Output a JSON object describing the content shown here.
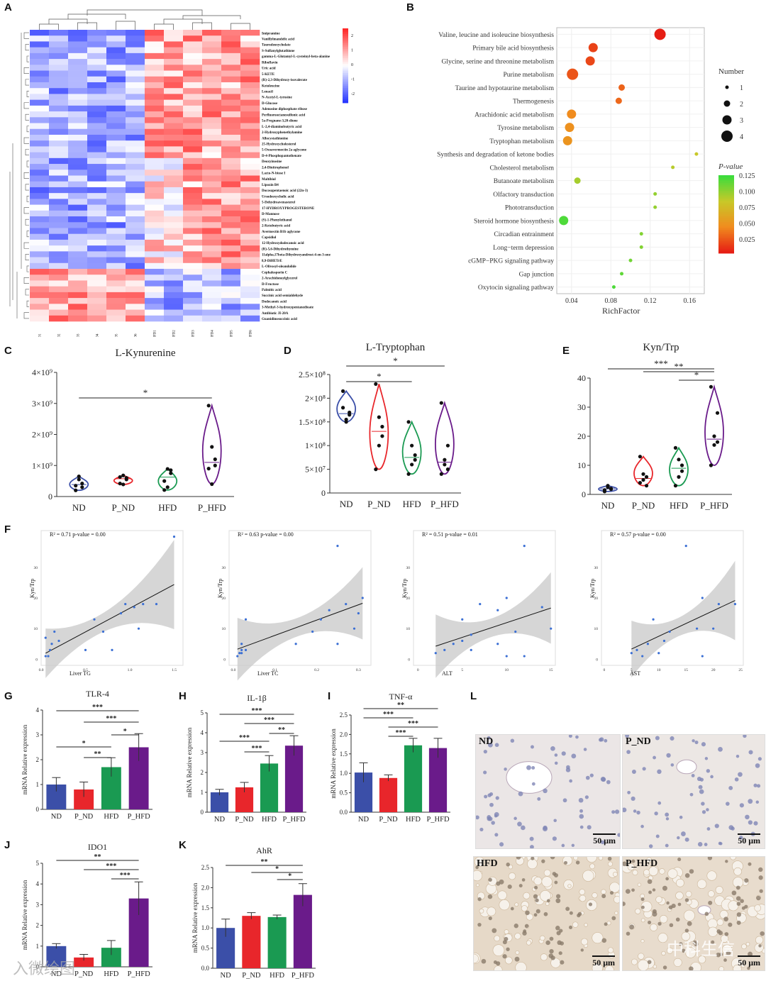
{
  "panel_labels": {
    "A": "A",
    "B": "B",
    "C": "C",
    "D": "D",
    "E": "E",
    "F": "F",
    "G": "G",
    "H": "H",
    "I": "I",
    "J": "J",
    "K": "K",
    "L": "L"
  },
  "colors": {
    "ND": "#3b4fa8",
    "P_ND": "#e8262b",
    "HFD": "#1a9a52",
    "P_HFD": "#6a1b8a",
    "heat_hi": "#e3262b",
    "heat_lo": "#2b3fcf"
  },
  "chart_data": [
    {
      "id": "A",
      "type": "heatmap",
      "columns": [
        "HFD1",
        "HFD2",
        "HFD3",
        "HFD4",
        "HFD5",
        "HFD6",
        "P_HFD1",
        "P_HFD2",
        "P_HFD3",
        "P_HFD4",
        "P_HFD5",
        "P_HFD6"
      ],
      "rows": [
        "Imipramine",
        "Vanillylmandelic acid",
        "Taurodeoxycholate",
        "S-Sulfanylglutathione",
        "gamma-L-Glutamyl-L-cysteinyl-beta-alanine",
        "Riboflavin",
        "Uric acid",
        "5-KETE",
        "(R)-2,3-Dihydroxy-isovalerate",
        "Ketoleucine",
        "Lenacil",
        "N-Acetyl-L-tyrosine",
        "D-Glucose",
        "Adenosine diphosphate ribose",
        "Perfluorooctanesulfonic acid",
        "5a-Pregnane-3,20-dione",
        "L-2,4-diaminobutyric acid",
        "2-Hydroxyphenethylamine",
        "Allocystathionine",
        "25-Hydroxycholesterol",
        "5-Oxoavermectin 2a aglycone",
        "D-4-Phosphopantothenate",
        "Deoxyinosine",
        "2,4-Dinitrophenol",
        "Lacto-N-biose I",
        "Maltibiol",
        "Lipoxin B4",
        "Docosapentaenoic acid (22n-3)",
        "Ursodeoxycholic acid",
        "5-Dehydroavenasterol",
        "17-HYDROXYPROGESTERONE",
        "D-Mannose",
        "(S)-1-Phenylethanol",
        "2-Ketobutyric acid",
        "Avermectin B1b aglycone",
        "Capsidiol",
        "12-Hydroxydodecanoic acid",
        "(R)-5,6-Dihydrothymine",
        "11alpha,17beta-Dihydroxyandrost-4-en-3-one",
        "8,9-DiHETrE",
        "L-Olivosyl-oleandolide",
        "Cephalosporin C",
        "2-Arachidonoylglycerol",
        "D-Fructose",
        "Palmitic acid",
        "Succinic acid semialdehyde",
        "Dodecanoic acid",
        "3-Methyl-3-hydroxypentanedioate",
        "Antibiotic JI-20A",
        "Guanidinosuccinic acid"
      ],
      "colorbar_ticks": [
        "2",
        "1",
        "0",
        "-1",
        "-2"
      ],
      "values_note": "z-score rows, red high / blue low"
    },
    {
      "id": "B",
      "type": "scatter",
      "title": "",
      "xlabel": "RichFactor",
      "xticks": [
        "0.04",
        "0.08",
        "0.12",
        "0.16"
      ],
      "xlim": [
        0.025,
        0.175
      ],
      "pathways": [
        {
          "name": "Valine, leucine and isoleucine biosynthesis",
          "rich": 0.13,
          "number": 4,
          "p": 0.005
        },
        {
          "name": "Primary bile acid biosynthesis",
          "rich": 0.062,
          "number": 3,
          "p": 0.018
        },
        {
          "name": "Glycine, serine and threonine metabolism",
          "rich": 0.059,
          "number": 3,
          "p": 0.02
        },
        {
          "name": "Purine metabolism",
          "rich": 0.041,
          "number": 4,
          "p": 0.025
        },
        {
          "name": "Taurine and hypotaurine metabolism",
          "rich": 0.091,
          "number": 2,
          "p": 0.03
        },
        {
          "name": "Thermogenesis",
          "rich": 0.088,
          "number": 2,
          "p": 0.032
        },
        {
          "name": "Arachidonic acid metabolism",
          "rich": 0.04,
          "number": 3,
          "p": 0.045
        },
        {
          "name": "Tyrosine metabolism",
          "rich": 0.038,
          "number": 3,
          "p": 0.048
        },
        {
          "name": "Tryptophan metabolism",
          "rich": 0.036,
          "number": 3,
          "p": 0.05
        },
        {
          "name": "Synthesis and degradation of ketone bodies",
          "rich": 0.167,
          "number": 1,
          "p": 0.085
        },
        {
          "name": "Cholesterol metabolism",
          "rich": 0.143,
          "number": 1,
          "p": 0.09
        },
        {
          "name": "Butanoate metabolism",
          "rich": 0.046,
          "number": 2,
          "p": 0.095
        },
        {
          "name": "Olfactory transduction",
          "rich": 0.125,
          "number": 1,
          "p": 0.1
        },
        {
          "name": "Phototransduction",
          "rich": 0.125,
          "number": 1,
          "p": 0.1
        },
        {
          "name": "Steroid hormone biosynthesis",
          "rich": 0.032,
          "number": 3,
          "p": 0.12
        },
        {
          "name": "Circadian entrainment",
          "rich": 0.111,
          "number": 1,
          "p": 0.105
        },
        {
          "name": "Long−term depression",
          "rich": 0.111,
          "number": 1,
          "p": 0.105
        },
        {
          "name": "cGMP−PKG signaling pathway",
          "rich": 0.1,
          "number": 1,
          "p": 0.11
        },
        {
          "name": "Gap junction",
          "rich": 0.091,
          "number": 1,
          "p": 0.115
        },
        {
          "name": "Oxytocin signaling pathway",
          "rich": 0.083,
          "number": 1,
          "p": 0.12
        }
      ],
      "legend_number_title": "Number",
      "legend_number_values": [
        "1",
        "2",
        "3",
        "4"
      ],
      "legend_p_title": "P-value",
      "legend_p_ticks": [
        "0.125",
        "0.100",
        "0.075",
        "0.050",
        "0.025"
      ]
    },
    {
      "id": "C",
      "type": "violin",
      "title": "L-Kynurenine",
      "categories": [
        "ND",
        "P_ND",
        "HFD",
        "P_HFD"
      ],
      "yticks": [
        "0",
        "1×10⁹",
        "2×10⁹",
        "3×10⁹",
        "4×10⁹"
      ],
      "ylim": [
        0,
        4000000000.0
      ],
      "points": [
        [
          350000000.0,
          650000000.0,
          420000000.0,
          200000000.0,
          550000000.0,
          300000000.0
        ],
        [
          420000000.0,
          680000000.0,
          550000000.0,
          630000000.0,
          390000000.0,
          600000000.0
        ],
        [
          210000000.0,
          890000000.0,
          750000000.0,
          500000000.0,
          300000000.0,
          850000000.0
        ],
        [
          2930000000.0,
          1600000000.0,
          1200000000.0,
          900000000.0,
          400000000.0,
          1000000000.0
        ]
      ],
      "significance": [
        {
          "from": "ND",
          "to": "P_HFD",
          "label": "*"
        }
      ]
    },
    {
      "id": "D",
      "type": "violin",
      "title": "L-Tryptophan",
      "categories": [
        "ND",
        "P_ND",
        "HFD",
        "P_HFD"
      ],
      "yticks": [
        "0",
        "5×10⁷",
        "1×10⁸",
        "1.5×10⁸",
        "2×10⁸",
        "2.5×10⁸"
      ],
      "ylim": [
        0,
        250000000.0
      ],
      "points": [
        [
          215000000.0,
          150000000.0,
          165000000.0,
          180000000.0,
          155000000.0,
          170000000.0
        ],
        [
          230000000.0,
          160000000.0,
          120000000.0,
          50000000.0,
          100000000.0,
          140000000.0
        ],
        [
          150000000.0,
          100000000.0,
          70000000.0,
          40000000.0,
          60000000.0,
          80000000.0
        ],
        [
          190000000.0,
          60000000.0,
          50000000.0,
          40000000.0,
          70000000.0,
          100000000.0
        ]
      ],
      "significance": [
        {
          "from": "ND",
          "to": "HFD",
          "label": "*"
        },
        {
          "from": "ND",
          "to": "P_HFD",
          "label": "*"
        }
      ]
    },
    {
      "id": "E",
      "type": "violin",
      "title": "Kyn/Trp",
      "categories": [
        "ND",
        "P_ND",
        "HFD",
        "P_HFD"
      ],
      "yticks": [
        "0",
        "10",
        "20",
        "30",
        "40"
      ],
      "ylim": [
        0,
        40
      ],
      "points": [
        [
          1.5,
          3,
          2,
          1,
          2.5,
          1.8
        ],
        [
          13,
          5,
          3,
          4,
          7,
          6
        ],
        [
          16,
          12,
          8,
          3,
          6,
          10
        ],
        [
          37,
          20,
          18,
          10,
          17,
          28
        ]
      ],
      "significance": [
        {
          "from": "ND",
          "to": "P_HFD",
          "label": "***"
        },
        {
          "from": "P_ND",
          "to": "P_HFD",
          "label": "**"
        },
        {
          "from": "HFD",
          "to": "P_HFD",
          "label": "*"
        }
      ]
    },
    {
      "id": "F1",
      "type": "scatter",
      "annotation": "R² = 0.71  p-value = 0.00",
      "xlabel": "Liver TG",
      "ylabel": "Kyn/Trp",
      "xticks": [
        "0.0",
        "0.5",
        "1.0",
        "1.5"
      ],
      "yticks": [
        "0",
        "10",
        "20",
        "30"
      ],
      "xlim": [
        0,
        1.6
      ],
      "ylim": [
        -2,
        42
      ],
      "points": [
        [
          1.5,
          40
        ],
        [
          0.05,
          7
        ],
        [
          0.1,
          3
        ],
        [
          0.12,
          5
        ],
        [
          0.08,
          1
        ],
        [
          0.15,
          9
        ],
        [
          0.2,
          6
        ],
        [
          0.6,
          13
        ],
        [
          0.9,
          15
        ],
        [
          0.95,
          18
        ],
        [
          1.05,
          17
        ],
        [
          1.15,
          18
        ],
        [
          0.7,
          9
        ],
        [
          0.5,
          3
        ],
        [
          0.8,
          3
        ],
        [
          1.1,
          10
        ],
        [
          1.3,
          18
        ],
        [
          0.05,
          1
        ]
      ]
    },
    {
      "id": "F2",
      "type": "scatter",
      "annotation": "R² = 0.63  p-value = 0.00",
      "xlabel": "Liver TC",
      "ylabel": "Kyn/Trp",
      "xticks": [
        "0.0",
        "0.1",
        "0.2",
        "0.3"
      ],
      "yticks": [
        "0",
        "10",
        "20",
        "30"
      ],
      "xlim": [
        -0.01,
        0.33
      ],
      "ylim": [
        -2,
        42
      ],
      "points": [
        [
          0.25,
          37
        ],
        [
          0.31,
          20
        ],
        [
          0.27,
          18
        ],
        [
          0.23,
          16
        ],
        [
          0.21,
          13
        ],
        [
          0.29,
          10
        ],
        [
          0.19,
          9
        ],
        [
          0.15,
          5
        ],
        [
          0.03,
          13
        ],
        [
          0.02,
          3
        ],
        [
          0.015,
          2
        ],
        [
          0.02,
          5
        ],
        [
          0.03,
          3
        ],
        [
          0.01,
          1
        ],
        [
          0.02,
          2
        ],
        [
          0.25,
          5
        ],
        [
          0.3,
          15
        ]
      ]
    },
    {
      "id": "F3",
      "type": "scatter",
      "annotation": "R² = 0.51  p-value = 0.01",
      "xlabel": "ALT",
      "ylabel": "Kyn/Trp",
      "xticks": [
        "0",
        "5",
        "10",
        "15"
      ],
      "yticks": [
        "0",
        "10",
        "20",
        "30"
      ],
      "xlim": [
        -0.5,
        15.5
      ],
      "ylim": [
        -2,
        42
      ],
      "points": [
        [
          12,
          37
        ],
        [
          10,
          20
        ],
        [
          7,
          18
        ],
        [
          9,
          16
        ],
        [
          5,
          13
        ],
        [
          15,
          10
        ],
        [
          11,
          9
        ],
        [
          4,
          5
        ],
        [
          3,
          3
        ],
        [
          6,
          3
        ],
        [
          5,
          6
        ],
        [
          2,
          2
        ],
        [
          10,
          1
        ],
        [
          12,
          1
        ],
        [
          9,
          5
        ],
        [
          14,
          17
        ],
        [
          6,
          8
        ]
      ]
    },
    {
      "id": "F4",
      "type": "scatter",
      "annotation": "R² = 0.57  p-value = 0.00",
      "xlabel": "AST",
      "ylabel": "Kyn/Trp",
      "xticks": [
        "0",
        "5",
        "10",
        "15",
        "20",
        "25"
      ],
      "yticks": [
        "0",
        "10",
        "20",
        "30"
      ],
      "xlim": [
        -0.5,
        25.5
      ],
      "ylim": [
        -2,
        42
      ],
      "points": [
        [
          15,
          37
        ],
        [
          18,
          20
        ],
        [
          21,
          18
        ],
        [
          24,
          18
        ],
        [
          9,
          13
        ],
        [
          17,
          10
        ],
        [
          12,
          9
        ],
        [
          8,
          5
        ],
        [
          6,
          3
        ],
        [
          5,
          2
        ],
        [
          10,
          2
        ],
        [
          7,
          1
        ],
        [
          18,
          1
        ],
        [
          20,
          10
        ],
        [
          11,
          6
        ]
      ]
    },
    {
      "id": "G",
      "type": "bar",
      "title": "TLR-4",
      "ylabel": "mRNA Relative expression",
      "categories": [
        "ND",
        "P_ND",
        "HFD",
        "P_HFD"
      ],
      "values": [
        1.0,
        0.8,
        1.7,
        2.5
      ],
      "errors": [
        0.28,
        0.3,
        0.38,
        0.55
      ],
      "yticks": [
        "0",
        "1",
        "2",
        "3",
        "4"
      ],
      "ylim": [
        0,
        4
      ],
      "significance": [
        {
          "from": "ND",
          "to": "P_HFD",
          "label": "***"
        },
        {
          "from": "P_ND",
          "to": "P_HFD",
          "label": "***"
        },
        {
          "from": "HFD",
          "to": "P_HFD",
          "label": "*"
        },
        {
          "from": "ND",
          "to": "HFD",
          "label": "*"
        },
        {
          "from": "P_ND",
          "to": "HFD",
          "label": "**"
        }
      ]
    },
    {
      "id": "H",
      "type": "bar",
      "title": "IL-1β",
      "ylabel": "mRNA Relative expression",
      "categories": [
        "ND",
        "P_ND",
        "HFD",
        "P_HFD"
      ],
      "values": [
        1.0,
        1.25,
        2.45,
        3.35
      ],
      "errors": [
        0.15,
        0.25,
        0.4,
        0.5
      ],
      "yticks": [
        "0",
        "1",
        "2",
        "3",
        "4",
        "5"
      ],
      "ylim": [
        0,
        5
      ],
      "significance": [
        {
          "from": "ND",
          "to": "P_HFD",
          "label": "***"
        },
        {
          "from": "P_ND",
          "to": "P_HFD",
          "label": "***"
        },
        {
          "from": "HFD",
          "to": "P_HFD",
          "label": "**"
        },
        {
          "from": "ND",
          "to": "HFD",
          "label": "***"
        },
        {
          "from": "P_ND",
          "to": "HFD",
          "label": "***"
        }
      ]
    },
    {
      "id": "I",
      "type": "bar",
      "title": "TNF-α",
      "ylabel": "mRNA Relative expression",
      "categories": [
        "ND",
        "P_ND",
        "HFD",
        "P_HFD"
      ],
      "values": [
        1.02,
        0.88,
        1.72,
        1.65
      ],
      "errors": [
        0.25,
        0.08,
        0.18,
        0.25
      ],
      "yticks": [
        "0.0",
        "0.5",
        "1.0",
        "1.5",
        "2.0",
        "2.5"
      ],
      "ylim": [
        0,
        2.5
      ],
      "significance": [
        {
          "from": "ND",
          "to": "P_HFD",
          "label": "**"
        },
        {
          "from": "ND",
          "to": "HFD",
          "label": "***"
        },
        {
          "from": "P_ND",
          "to": "P_HFD",
          "label": "***"
        },
        {
          "from": "P_ND",
          "to": "HFD",
          "label": "***"
        }
      ]
    },
    {
      "id": "J",
      "type": "bar",
      "title": "IDO1",
      "ylabel": "mRNA Relative expression",
      "categories": [
        "ND",
        "P_ND",
        "HFD",
        "P_HFD"
      ],
      "values": [
        1.0,
        0.45,
        0.92,
        3.3
      ],
      "errors": [
        0.12,
        0.15,
        0.35,
        0.8
      ],
      "yticks": [
        "0",
        "1",
        "2",
        "3",
        "4",
        "5"
      ],
      "ylim": [
        0,
        5
      ],
      "significance": [
        {
          "from": "ND",
          "to": "P_HFD",
          "label": "**"
        },
        {
          "from": "P_ND",
          "to": "P_HFD",
          "label": "***"
        },
        {
          "from": "HFD",
          "to": "P_HFD",
          "label": "***"
        }
      ]
    },
    {
      "id": "K",
      "type": "bar",
      "title": "AhR",
      "ylabel": "mRNA Relative expression",
      "categories": [
        "ND",
        "P_ND",
        "HFD",
        "P_HFD"
      ],
      "values": [
        1.0,
        1.3,
        1.27,
        1.82
      ],
      "errors": [
        0.22,
        0.08,
        0.05,
        0.28
      ],
      "yticks": [
        "0.0",
        "0.5",
        "1.0",
        "1.5",
        "2.0",
        "2.5"
      ],
      "ylim": [
        0,
        2.5
      ],
      "significance": [
        {
          "from": "ND",
          "to": "P_HFD",
          "label": "**"
        },
        {
          "from": "P_ND",
          "to": "P_HFD",
          "label": "*"
        },
        {
          "from": "HFD",
          "to": "P_HFD",
          "label": "*"
        }
      ]
    }
  ],
  "micrographs": [
    {
      "tag": "ND",
      "scale": "50 μm"
    },
    {
      "tag": "P_ND",
      "scale": "50 μm"
    },
    {
      "tag": "HFD",
      "scale": "50 μm"
    },
    {
      "tag": "P_HFD",
      "scale": "50 μm"
    }
  ],
  "watermarks": {
    "left": "入微绘图",
    "right": "中科生信"
  }
}
